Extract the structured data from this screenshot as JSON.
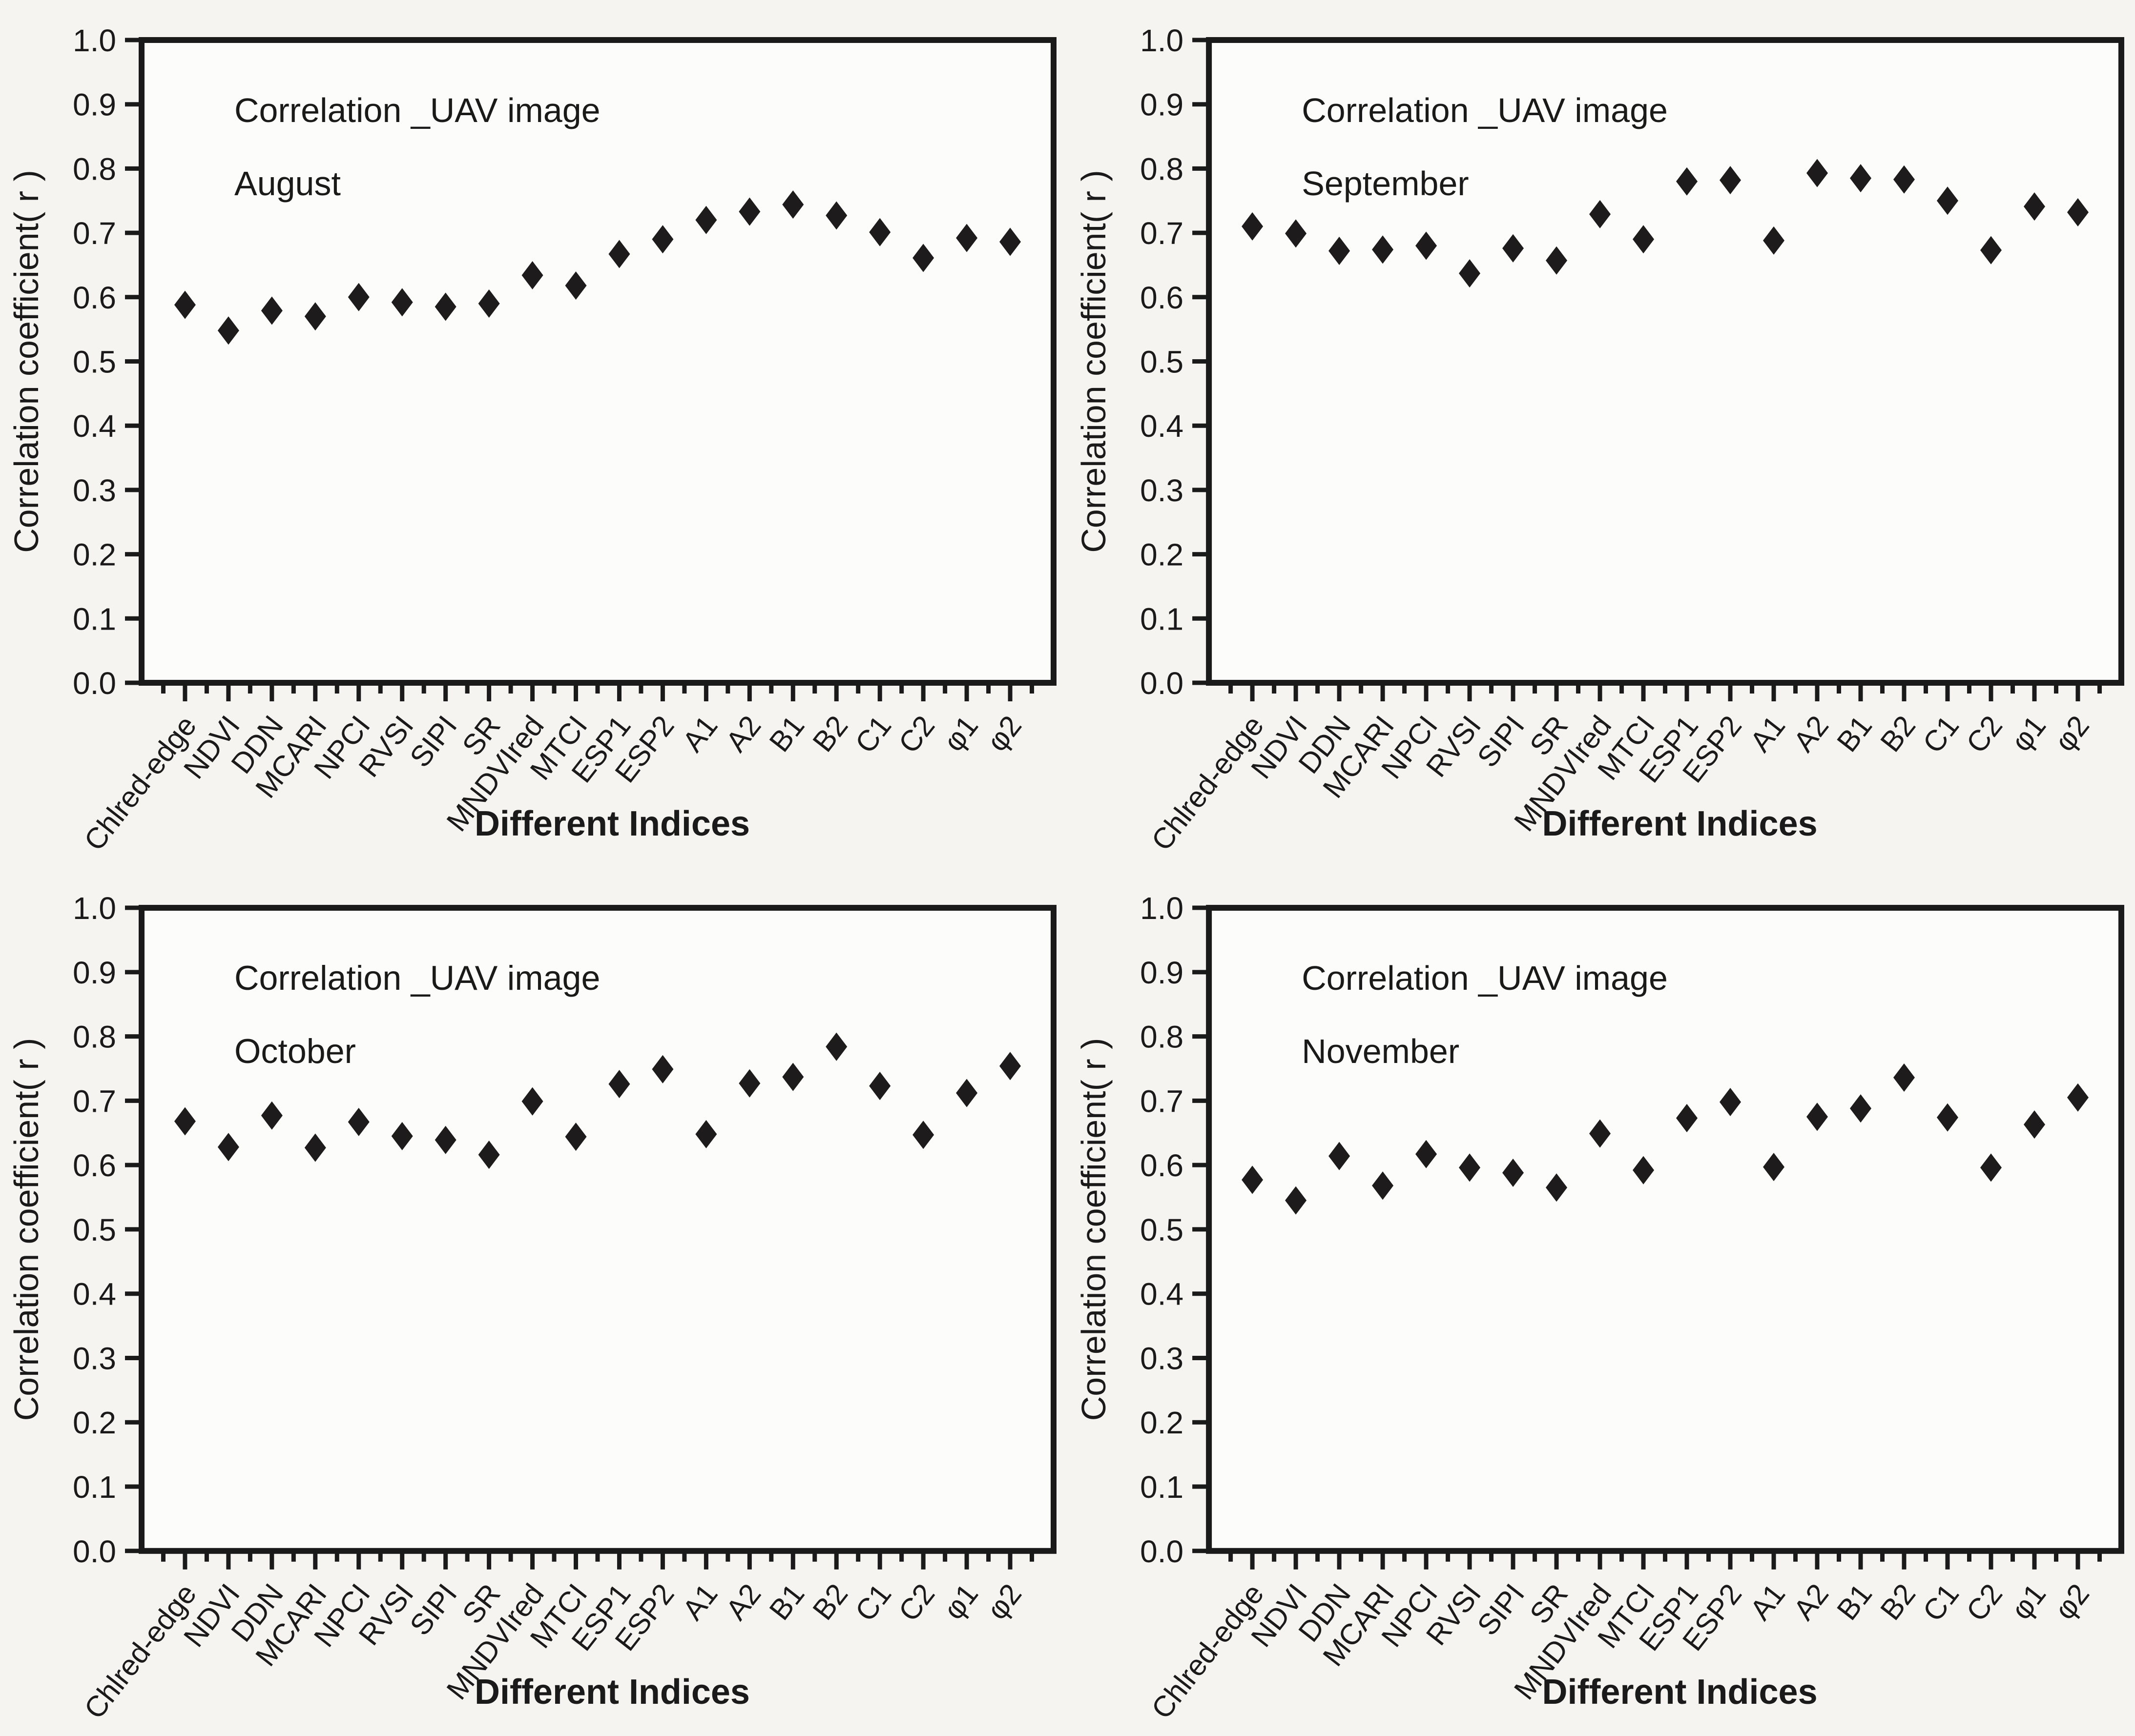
{
  "figure": {
    "background": "#f5f4f1",
    "plot_background": "#fcfcfa",
    "text_color": "#1a1a1a",
    "axis_color": "#1a1a1a",
    "marker_color": "#1d1b1b"
  },
  "chart_data": [
    {
      "type": "scatter",
      "marker": "diamond",
      "title": "Correlation _UAV image",
      "subtitle": "August",
      "xlabel": "Different Indices",
      "ylabel": "Correlation coefficient( r )",
      "ylim": [
        0.0,
        1.0
      ],
      "yticks": [
        0.0,
        0.1,
        0.2,
        0.3,
        0.4,
        0.5,
        0.6,
        0.7,
        0.8,
        0.9,
        1.0
      ],
      "grid": "off",
      "legend": "none",
      "categories": [
        "Chlred-edge",
        "NDVI",
        "DDN",
        "MCARI",
        "NPCI",
        "RVSI",
        "SIPI",
        "SR",
        "MNDVIred",
        "MTCI",
        "ESP1",
        "ESP2",
        "A1",
        "A2",
        "B1",
        "B2",
        "C1",
        "C2",
        "φ1",
        "φ2"
      ],
      "values": [
        0.588,
        0.548,
        0.579,
        0.57,
        0.6,
        0.592,
        0.585,
        0.59,
        0.634,
        0.618,
        0.667,
        0.69,
        0.72,
        0.733,
        0.744,
        0.727,
        0.701,
        0.661,
        0.692,
        0.686
      ]
    },
    {
      "type": "scatter",
      "marker": "diamond",
      "title": "Correlation _UAV image",
      "subtitle": "September",
      "xlabel": "Different Indices",
      "ylabel": "Correlation coefficient( r )",
      "ylim": [
        0.0,
        1.0
      ],
      "yticks": [
        0.0,
        0.1,
        0.2,
        0.3,
        0.4,
        0.5,
        0.6,
        0.7,
        0.8,
        0.9,
        1.0
      ],
      "grid": "off",
      "legend": "none",
      "categories": [
        "Chlred-edge",
        "NDVI",
        "DDN",
        "MCARI",
        "NPCI",
        "RVSI",
        "SIPI",
        "SR",
        "MNDVIred",
        "MTCI",
        "ESP1",
        "ESP2",
        "A1",
        "A2",
        "B1",
        "B2",
        "C1",
        "C2",
        "φ1",
        "φ2"
      ],
      "values": [
        0.71,
        0.699,
        0.672,
        0.674,
        0.68,
        0.637,
        0.676,
        0.657,
        0.729,
        0.69,
        0.78,
        0.782,
        0.688,
        0.793,
        0.785,
        0.783,
        0.75,
        0.673,
        0.741,
        0.732
      ]
    },
    {
      "type": "scatter",
      "marker": "diamond",
      "title": "Correlation _UAV image",
      "subtitle": "October",
      "xlabel": "Different Indices",
      "ylabel": "Correlation coefficient( r )",
      "ylim": [
        0.0,
        1.0
      ],
      "yticks": [
        0.0,
        0.1,
        0.2,
        0.3,
        0.4,
        0.5,
        0.6,
        0.7,
        0.8,
        0.9,
        1.0
      ],
      "grid": "off",
      "legend": "none",
      "categories": [
        "Chlred-edge",
        "NDVI",
        "DDN",
        "MCARI",
        "NPCI",
        "RVSI",
        "SIPI",
        "SR",
        "MNDVIred",
        "MTCI",
        "ESP1",
        "ESP2",
        "A1",
        "A2",
        "B1",
        "B2",
        "C1",
        "C2",
        "φ1",
        "φ2"
      ],
      "values": [
        0.668,
        0.628,
        0.677,
        0.627,
        0.667,
        0.645,
        0.639,
        0.616,
        0.699,
        0.644,
        0.726,
        0.749,
        0.648,
        0.727,
        0.737,
        0.784,
        0.723,
        0.647,
        0.712,
        0.754
      ]
    },
    {
      "type": "scatter",
      "marker": "diamond",
      "title": "Correlation _UAV image",
      "subtitle": "November",
      "xlabel": "Different Indices",
      "ylabel": "Correlation coefficient( r )",
      "ylim": [
        0.0,
        1.0
      ],
      "yticks": [
        0.0,
        0.1,
        0.2,
        0.3,
        0.4,
        0.5,
        0.6,
        0.7,
        0.8,
        0.9,
        1.0
      ],
      "grid": "off",
      "legend": "none",
      "categories": [
        "Chlred-edge",
        "NDVI",
        "DDN",
        "MCARI",
        "NPCI",
        "RVSI",
        "SIPI",
        "SR",
        "MNDVIred",
        "MTCI",
        "ESP1",
        "ESP2",
        "A1",
        "A2",
        "B1",
        "B2",
        "C1",
        "C2",
        "φ1",
        "φ2"
      ],
      "values": [
        0.577,
        0.545,
        0.614,
        0.568,
        0.617,
        0.596,
        0.588,
        0.565,
        0.649,
        0.592,
        0.673,
        0.698,
        0.597,
        0.675,
        0.688,
        0.736,
        0.674,
        0.596,
        0.663,
        0.705
      ]
    }
  ]
}
